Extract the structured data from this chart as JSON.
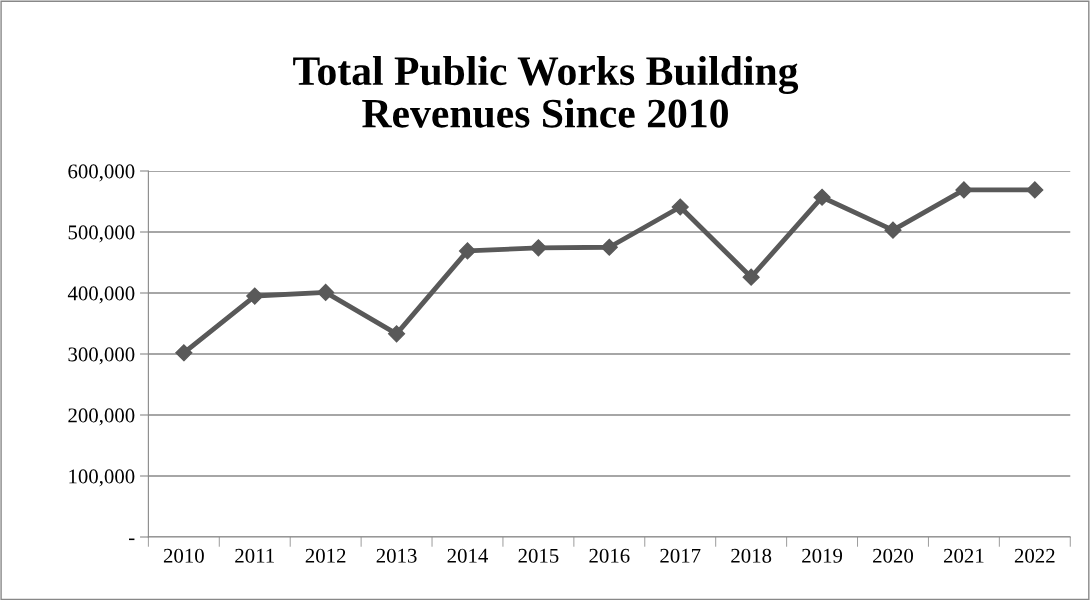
{
  "chart_data": {
    "type": "line",
    "title": "Total Public Works Building\nRevenues Since 2010",
    "categories": [
      "2010",
      "2011",
      "2012",
      "2013",
      "2014",
      "2015",
      "2016",
      "2017",
      "2018",
      "2019",
      "2020",
      "2021",
      "2022"
    ],
    "series": [
      {
        "color": "#595959",
        "values": [
          302000,
          395000,
          401000,
          333000,
          469000,
          474000,
          475000,
          541000,
          426000,
          557000,
          503000,
          569000,
          569000
        ]
      }
    ],
    "ylim": [
      0,
      600000
    ],
    "yticks": [
      {
        "value": 0,
        "label": "-"
      },
      {
        "value": 100000,
        "label": "100,000"
      },
      {
        "value": 200000,
        "label": "200,000"
      },
      {
        "value": 300000,
        "label": "300,000"
      },
      {
        "value": 400000,
        "label": "400,000"
      },
      {
        "value": 500000,
        "label": "500,000"
      },
      {
        "value": 600000,
        "label": "600,000"
      }
    ],
    "grid": "y",
    "marker": "diamond",
    "line_style": "solid",
    "legend": false
  }
}
